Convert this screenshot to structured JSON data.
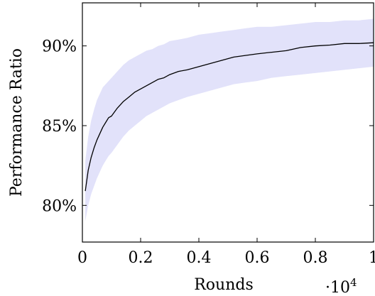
{
  "chart_data": {
    "type": "line",
    "title": "",
    "xlabel": "Rounds",
    "ylabel": "Performance Ratio",
    "x_multiplier_label": "·10",
    "x_multiplier_exponent": "4",
    "xlim": [
      0,
      1
    ],
    "ylim": [
      0.777,
      0.927
    ],
    "x_ticks": [
      0,
      0.2,
      0.4,
      0.6,
      0.8,
      1
    ],
    "x_tick_labels": [
      "0",
      "0.2",
      "0.4",
      "0.6",
      "0.8",
      "1"
    ],
    "y_ticks": [
      0.8,
      0.85,
      0.9
    ],
    "y_tick_labels": [
      "80%",
      "85%",
      "90%"
    ],
    "grid": false,
    "legend": "none",
    "series": [
      {
        "band_color": "#e2e2fa",
        "line_color": "#000000",
        "x": [
          0.01,
          0.02,
          0.03,
          0.04,
          0.05,
          0.06,
          0.07,
          0.08,
          0.09,
          0.1,
          0.12,
          0.14,
          0.16,
          0.18,
          0.2,
          0.22,
          0.24,
          0.26,
          0.28,
          0.3,
          0.33,
          0.36,
          0.4,
          0.44,
          0.48,
          0.52,
          0.56,
          0.6,
          0.65,
          0.7,
          0.75,
          0.8,
          0.85,
          0.9,
          0.95,
          1.0
        ],
        "mean": [
          0.809,
          0.822,
          0.83,
          0.836,
          0.841,
          0.845,
          0.849,
          0.852,
          0.855,
          0.856,
          0.861,
          0.865,
          0.868,
          0.871,
          0.873,
          0.875,
          0.877,
          0.879,
          0.88,
          0.882,
          0.884,
          0.885,
          0.887,
          0.889,
          0.891,
          0.893,
          0.894,
          0.895,
          0.896,
          0.897,
          0.899,
          0.9,
          0.9005,
          0.9015,
          0.9015,
          0.902
        ],
        "lower": [
          0.79,
          0.8,
          0.807,
          0.812,
          0.817,
          0.821,
          0.825,
          0.828,
          0.831,
          0.833,
          0.838,
          0.843,
          0.847,
          0.85,
          0.853,
          0.856,
          0.858,
          0.86,
          0.862,
          0.864,
          0.866,
          0.868,
          0.87,
          0.872,
          0.874,
          0.876,
          0.877,
          0.878,
          0.88,
          0.881,
          0.882,
          0.883,
          0.884,
          0.885,
          0.886,
          0.887
        ],
        "upper": [
          0.828,
          0.843,
          0.853,
          0.86,
          0.866,
          0.87,
          0.874,
          0.876,
          0.878,
          0.88,
          0.884,
          0.888,
          0.891,
          0.893,
          0.895,
          0.897,
          0.898,
          0.9,
          0.901,
          0.903,
          0.904,
          0.905,
          0.907,
          0.908,
          0.909,
          0.91,
          0.911,
          0.912,
          0.912,
          0.913,
          0.914,
          0.915,
          0.915,
          0.916,
          0.916,
          0.917
        ]
      }
    ]
  }
}
